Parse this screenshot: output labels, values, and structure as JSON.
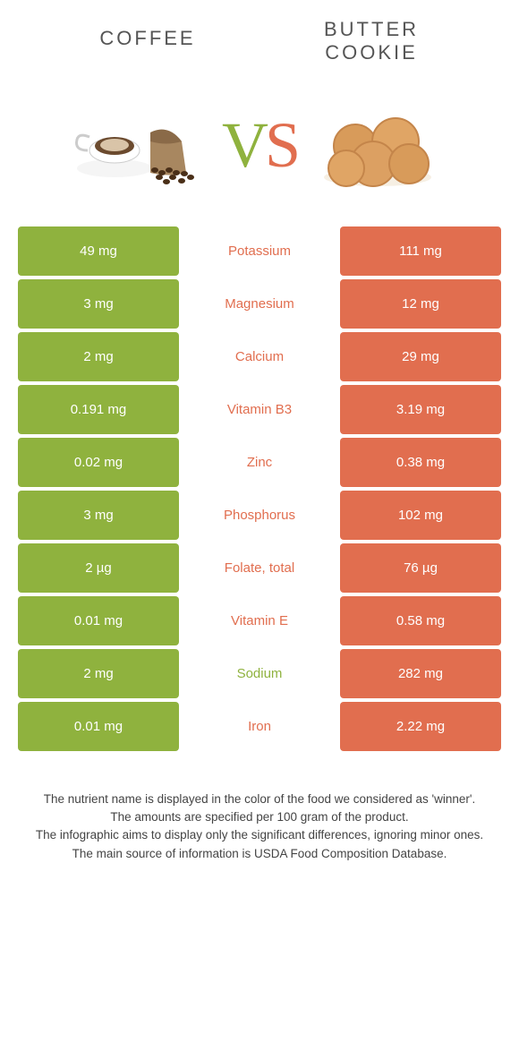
{
  "header": {
    "left_title": "COFFEE",
    "right_title_line1": "BUTTER",
    "right_title_line2": "COOKIE"
  },
  "vs": {
    "v": "V",
    "s": "S"
  },
  "colors": {
    "green": "#8fb23e",
    "orange": "#e16e4f",
    "bg": "#ffffff"
  },
  "rows": [
    {
      "left": "49 mg",
      "label": "Potassium",
      "winner": "orange",
      "right": "111 mg"
    },
    {
      "left": "3 mg",
      "label": "Magnesium",
      "winner": "orange",
      "right": "12 mg"
    },
    {
      "left": "2 mg",
      "label": "Calcium",
      "winner": "orange",
      "right": "29 mg"
    },
    {
      "left": "0.191 mg",
      "label": "Vitamin B3",
      "winner": "orange",
      "right": "3.19 mg"
    },
    {
      "left": "0.02 mg",
      "label": "Zinc",
      "winner": "orange",
      "right": "0.38 mg"
    },
    {
      "left": "3 mg",
      "label": "Phosphorus",
      "winner": "orange",
      "right": "102 mg"
    },
    {
      "left": "2 µg",
      "label": "Folate, total",
      "winner": "orange",
      "right": "76 µg"
    },
    {
      "left": "0.01 mg",
      "label": "Vitamin E",
      "winner": "orange",
      "right": "0.58 mg"
    },
    {
      "left": "2 mg",
      "label": "Sodium",
      "winner": "green",
      "right": "282 mg"
    },
    {
      "left": "0.01 mg",
      "label": "Iron",
      "winner": "orange",
      "right": "2.22 mg"
    }
  ],
  "footer": {
    "line1": "The nutrient name is displayed in the color of the food we considered as 'winner'.",
    "line2": "The amounts are specified per 100 gram of the product.",
    "line3": "The infographic aims to display only the significant differences, ignoring minor ones.",
    "line4": "The main source of information is USDA Food Composition Database."
  }
}
